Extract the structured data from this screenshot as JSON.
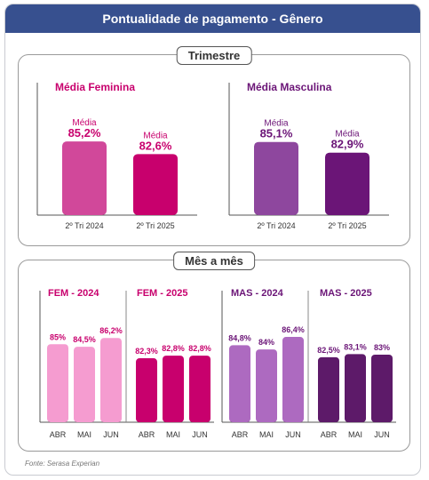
{
  "header": {
    "title": "Pontualidade de pagamento - Gênero"
  },
  "source": "Fonte: Serasa Experian",
  "colors": {
    "fem_quarter_2024": "#d1489a",
    "fem_quarter_2025": "#c8006d",
    "masc_quarter_2024": "#8e479e",
    "masc_quarter_2025": "#6b1577",
    "fem_month_2024": "#f59cd0",
    "fem_month_2025": "#c8006d",
    "masc_month_2024": "#ad6ac0",
    "masc_month_2025": "#5d1a69"
  },
  "chart_data": [
    {
      "type": "bar",
      "section": "Trimestre",
      "title": "Média Feminina",
      "categories": [
        "2º Tri 2024",
        "2º Tri 2025"
      ],
      "values": [
        85.2,
        82.6
      ],
      "data_label_prefix": "Média",
      "data_labels": [
        "85,2%",
        "82,6%"
      ]
    },
    {
      "type": "bar",
      "section": "Trimestre",
      "title": "Média Masculina",
      "categories": [
        "2º Tri 2024",
        "2º Tri 2025"
      ],
      "values": [
        85.1,
        82.9
      ],
      "data_label_prefix": "Média",
      "data_labels": [
        "85,1%",
        "82,9%"
      ]
    },
    {
      "type": "bar",
      "section": "Mês a mês",
      "series": [
        {
          "name": "FEM - 2024",
          "categories": [
            "ABR",
            "MAI",
            "JUN"
          ],
          "values": [
            85,
            84.5,
            86.2
          ],
          "data_labels": [
            "85%",
            "84,5%",
            "86,2%"
          ]
        },
        {
          "name": "FEM - 2025",
          "categories": [
            "ABR",
            "MAI",
            "JUN"
          ],
          "values": [
            82.3,
            82.8,
            82.8
          ],
          "data_labels": [
            "82,3%",
            "82,8%",
            "82,8%"
          ]
        }
      ]
    },
    {
      "type": "bar",
      "section": "Mês a mês",
      "series": [
        {
          "name": "MAS - 2024",
          "categories": [
            "ABR",
            "MAI",
            "JUN"
          ],
          "values": [
            84.8,
            84,
            86.4
          ],
          "data_labels": [
            "84,8%",
            "84%",
            "86,4%"
          ]
        },
        {
          "name": "MAS - 2025",
          "categories": [
            "ABR",
            "MAI",
            "JUN"
          ],
          "values": [
            82.5,
            83.1,
            83
          ],
          "data_labels": [
            "82,5%",
            "83,1%",
            "83%"
          ]
        }
      ]
    }
  ]
}
